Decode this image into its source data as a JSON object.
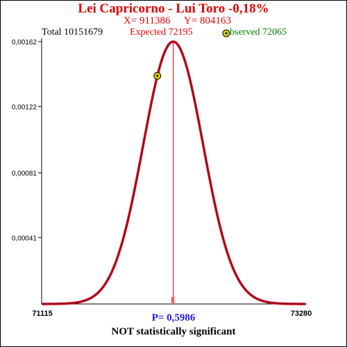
{
  "header": {
    "title": "Lei Capricorno - Lui Toro  -0,18%",
    "x_label": "X= 911386",
    "y_label": "Y= 804163",
    "total_label": "Total  10151679",
    "expected_label": "Expected  72195",
    "observed_label": "bserved  72065"
  },
  "footer": {
    "p_value": "P= 0,5986",
    "verdict": "NOT statistically significant"
  },
  "colors": {
    "curve": "#cc0000",
    "curve_inner": "#3030a0",
    "expected_line": "#e00000",
    "marker_fill": "#d4d400",
    "green_text": "#008000"
  },
  "chart_data": {
    "type": "line",
    "title": "Lei Capricorno - Lui Toro  -0,18%",
    "distribution": "normal",
    "mean": 72195,
    "sd": 246,
    "xlim": [
      71115,
      73280
    ],
    "ylim": [
      0,
      0.00162
    ],
    "x_tick_labels": [
      "71115",
      "73280"
    ],
    "y_tick_labels": [
      "0,00162",
      "0,00122",
      "0,00081",
      "0,00041"
    ],
    "y_tick_values": [
      0.00162,
      0.00122,
      0.00081,
      0.00041
    ],
    "expected": 72195,
    "expected_marker_label": "E",
    "observed": 72065,
    "grid": false
  }
}
